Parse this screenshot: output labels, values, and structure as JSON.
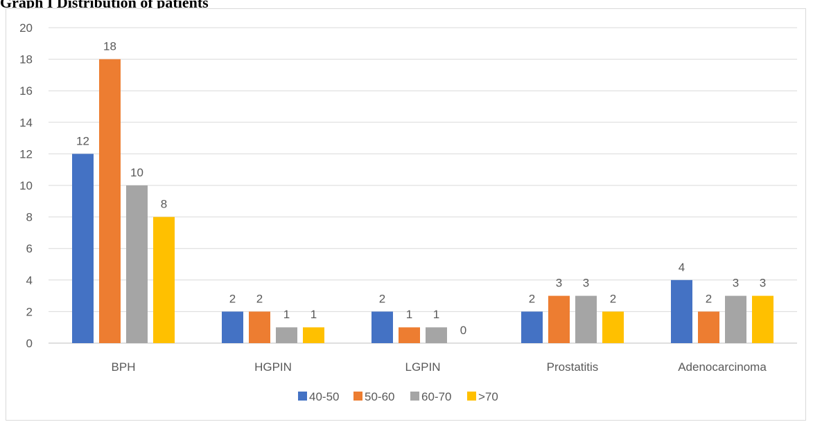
{
  "caption": "Graph I Distribution of patients",
  "chart_data": {
    "type": "bar",
    "categories": [
      "BPH",
      "HGPIN",
      "LGPIN",
      "Prostatitis",
      "Adenocarcinoma"
    ],
    "series": [
      {
        "name": "40-50",
        "color": "#4472c4",
        "values": [
          12,
          2,
          2,
          2,
          4
        ]
      },
      {
        "name": "50-60",
        "color": "#ed7d31",
        "values": [
          18,
          2,
          1,
          3,
          2
        ]
      },
      {
        "name": "60-70",
        "color": "#a5a5a5",
        "values": [
          10,
          1,
          1,
          3,
          3
        ]
      },
      {
        "name": ">70",
        "color": "#ffc000",
        "values": [
          8,
          1,
          0,
          2,
          3
        ]
      }
    ],
    "ylim": [
      0,
      20
    ],
    "yticks": [
      0,
      2,
      4,
      6,
      8,
      10,
      12,
      14,
      16,
      18,
      20
    ],
    "grid": true,
    "legend_position": "bottom",
    "data_labels": true
  }
}
